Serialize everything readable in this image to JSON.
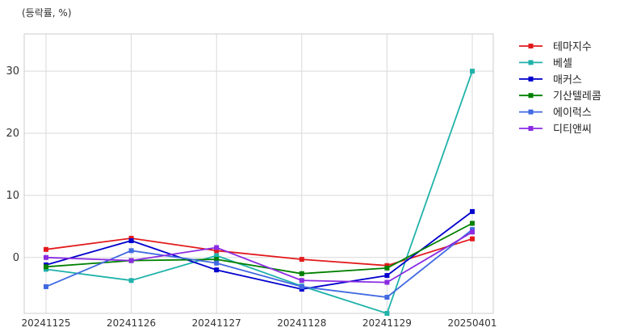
{
  "chart_data": {
    "type": "line",
    "unit_label": "(등락률, %)",
    "x": [
      "20241125",
      "20241126",
      "20241127",
      "20241128",
      "20241129",
      "20250401"
    ],
    "ylim": [
      -9,
      36
    ],
    "yticks": [
      0,
      10,
      20,
      30
    ],
    "grid": true,
    "legend_position": "outside-top-right",
    "series": [
      {
        "name": "테마지수",
        "color": "#e31a1c",
        "values": [
          1.3,
          3.1,
          1.1,
          -0.3,
          -1.3,
          3.0
        ]
      },
      {
        "name": "베셀",
        "color": "#20b2aa",
        "values": [
          -1.9,
          -3.7,
          0.3,
          -4.6,
          -9.0,
          30.0
        ]
      },
      {
        "name": "매커스",
        "color": "#0000cd",
        "values": [
          -1.2,
          2.7,
          -2.0,
          -5.1,
          -2.9,
          7.4
        ]
      },
      {
        "name": "기산텔레콤",
        "color": "#008000",
        "values": [
          -1.5,
          -0.5,
          -0.3,
          -2.6,
          -1.7,
          5.5
        ]
      },
      {
        "name": "에이럭스",
        "color": "#4169e1",
        "values": [
          -4.7,
          1.1,
          -0.9,
          -4.7,
          -6.4,
          4.5
        ]
      },
      {
        "name": "디티앤씨",
        "color": "#8a2be2",
        "values": [
          0.0,
          -0.5,
          1.6,
          -3.7,
          -4.0,
          4.1
        ]
      }
    ]
  }
}
